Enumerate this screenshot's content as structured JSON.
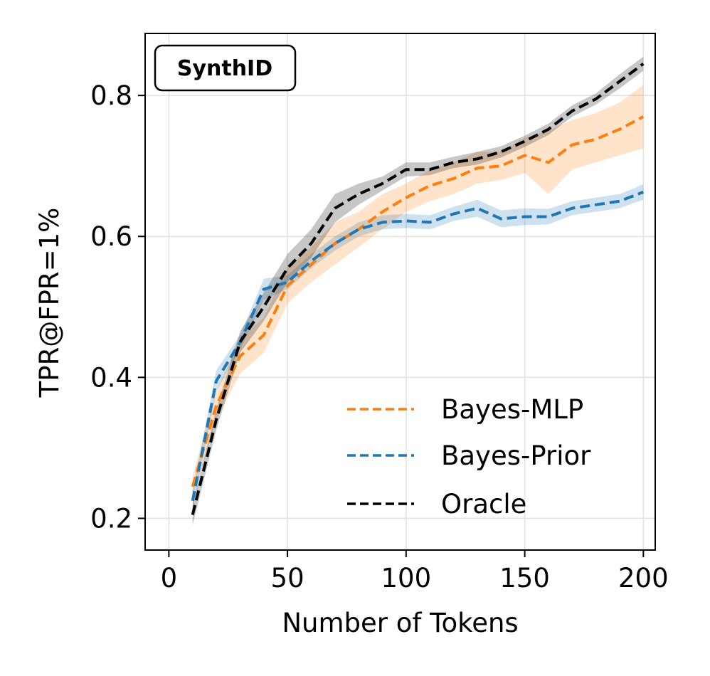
{
  "chart_data": {
    "type": "line",
    "title": "",
    "badge": "SynthID",
    "xlabel": "Number of Tokens",
    "ylabel": "TPR@FPR=1%",
    "xlim": [
      -10,
      205
    ],
    "ylim": [
      0.155,
      0.888
    ],
    "xticks": [
      0,
      50,
      100,
      150,
      200
    ],
    "xtick_labels": [
      "0",
      "50",
      "100",
      "150",
      "200"
    ],
    "yticks": [
      0.2,
      0.4,
      0.6,
      0.8
    ],
    "ytick_labels": [
      "0.2",
      "0.4",
      "0.6",
      "0.8"
    ],
    "grid": true,
    "legend_position": "lower-right",
    "x": [
      10,
      20,
      30,
      40,
      50,
      60,
      70,
      80,
      90,
      100,
      110,
      120,
      130,
      140,
      150,
      160,
      170,
      180,
      190,
      200
    ],
    "series": [
      {
        "name": "Bayes-MLP",
        "color": "#ff7f0e",
        "values": [
          0.245,
          0.36,
          0.43,
          0.46,
          0.53,
          0.56,
          0.59,
          0.61,
          0.635,
          0.655,
          0.672,
          0.682,
          0.697,
          0.7,
          0.715,
          0.705,
          0.73,
          0.738,
          0.752,
          0.77
        ],
        "lower": [
          0.23,
          0.34,
          0.405,
          0.435,
          0.505,
          0.535,
          0.56,
          0.585,
          0.61,
          0.635,
          0.65,
          0.66,
          0.675,
          0.68,
          0.69,
          0.66,
          0.695,
          0.705,
          0.715,
          0.725
        ],
        "upper": [
          0.26,
          0.38,
          0.455,
          0.485,
          0.555,
          0.585,
          0.62,
          0.635,
          0.66,
          0.675,
          0.695,
          0.705,
          0.72,
          0.72,
          0.74,
          0.75,
          0.765,
          0.775,
          0.79,
          0.815
        ]
      },
      {
        "name": "Bayes-Prior",
        "color": "#1f77b4",
        "values": [
          0.225,
          0.395,
          0.45,
          0.525,
          0.535,
          0.565,
          0.59,
          0.61,
          0.62,
          0.622,
          0.62,
          0.632,
          0.64,
          0.625,
          0.628,
          0.628,
          0.64,
          0.645,
          0.65,
          0.663
        ],
        "lower": [
          0.21,
          0.38,
          0.44,
          0.51,
          0.525,
          0.555,
          0.58,
          0.6,
          0.61,
          0.612,
          0.61,
          0.622,
          0.628,
          0.613,
          0.616,
          0.617,
          0.63,
          0.635,
          0.64,
          0.652
        ],
        "upper": [
          0.24,
          0.41,
          0.46,
          0.54,
          0.545,
          0.575,
          0.6,
          0.62,
          0.63,
          0.632,
          0.63,
          0.642,
          0.652,
          0.637,
          0.64,
          0.639,
          0.65,
          0.655,
          0.66,
          0.674
        ]
      },
      {
        "name": "Oracle",
        "color": "#000000",
        "values": [
          0.205,
          0.34,
          0.45,
          0.5,
          0.555,
          0.59,
          0.64,
          0.66,
          0.675,
          0.695,
          0.695,
          0.705,
          0.71,
          0.72,
          0.735,
          0.752,
          0.778,
          0.795,
          0.82,
          0.845
        ],
        "lower": [
          0.19,
          0.325,
          0.435,
          0.48,
          0.535,
          0.57,
          0.62,
          0.645,
          0.665,
          0.685,
          0.687,
          0.697,
          0.702,
          0.712,
          0.727,
          0.744,
          0.77,
          0.787,
          0.81,
          0.835
        ],
        "upper": [
          0.22,
          0.355,
          0.465,
          0.52,
          0.575,
          0.61,
          0.66,
          0.675,
          0.685,
          0.705,
          0.705,
          0.713,
          0.72,
          0.728,
          0.743,
          0.76,
          0.786,
          0.803,
          0.83,
          0.855
        ]
      }
    ]
  }
}
